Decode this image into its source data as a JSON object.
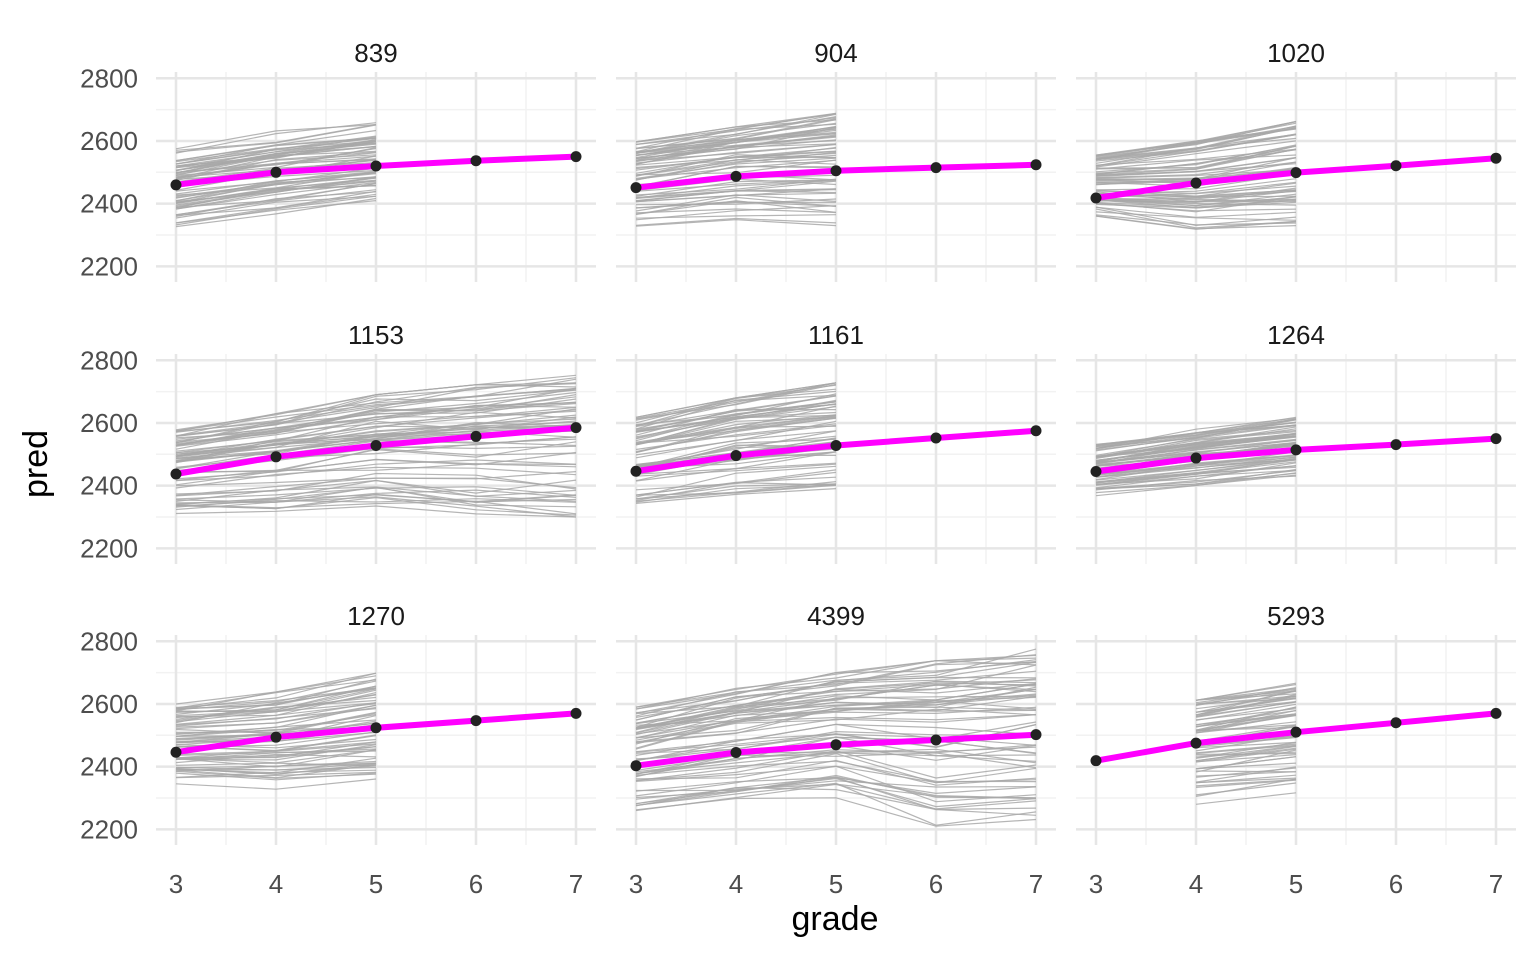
{
  "chart_data": {
    "type": "line",
    "facet_layout": "3 x 3 grid, shared axes",
    "xlabel": "grade",
    "ylabel": "pred",
    "xlim": [
      3,
      7
    ],
    "ylim": [
      2150,
      2820
    ],
    "x_ticks": [
      3,
      4,
      5,
      6,
      7
    ],
    "y_ticks": [
      2200,
      2400,
      2600,
      2800
    ],
    "grid": true,
    "legend": "none",
    "background_lines": "many thin gray lines per panel, one per individual (approximate spread described by upper/lower envelopes)",
    "colors": {
      "mean_line": "#ff00ff",
      "mean_point": "#222222",
      "individual_lines": "#a8a8a8",
      "grid_major": "#e6e6e6",
      "grid_minor": "#f2f2f2"
    },
    "panels": [
      {
        "title": "839",
        "grades": [
          3,
          4,
          5,
          6,
          7
        ],
        "mean": [
          2460,
          2500,
          2520,
          2537,
          2550
        ],
        "spread_grades": [
          3,
          4,
          5
        ],
        "spread_upper": [
          2582,
          2632,
          2668
        ],
        "spread_lower": [
          2308,
          2348,
          2378
        ]
      },
      {
        "title": "904",
        "grades": [
          3,
          4,
          5,
          6,
          7
        ],
        "mean": [
          2451,
          2487,
          2505,
          2515,
          2524
        ],
        "spread_grades": [
          3,
          4,
          5
        ],
        "spread_upper": [
          2597,
          2645,
          2688
        ],
        "spread_lower": [
          2328,
          2348,
          2330
        ]
      },
      {
        "title": "1020",
        "grades": [
          3,
          4,
          5,
          6,
          7
        ],
        "mean": [
          2418,
          2466,
          2499,
          2521,
          2545
        ],
        "spread_grades": [
          3,
          4,
          5
        ],
        "spread_upper": [
          2555,
          2600,
          2662
        ],
        "spread_lower": [
          2360,
          2318,
          2330
        ]
      },
      {
        "title": "1153",
        "grades": [
          3,
          4,
          5,
          6,
          7
        ],
        "mean": [
          2437,
          2492,
          2528,
          2557,
          2585
        ],
        "spread_grades": [
          3,
          4,
          5,
          6,
          7
        ],
        "spread_upper": [
          2578,
          2630,
          2690,
          2722,
          2752
        ],
        "spread_lower": [
          2308,
          2318,
          2335,
          2310,
          2300
        ]
      },
      {
        "title": "1161",
        "grades": [
          3,
          4,
          5,
          6,
          7
        ],
        "mean": [
          2446,
          2496,
          2528,
          2552,
          2575
        ],
        "spread_grades": [
          3,
          4,
          5
        ],
        "spread_upper": [
          2618,
          2680,
          2728
        ],
        "spread_lower": [
          2298,
          2330,
          2345
        ]
      },
      {
        "title": "1264",
        "grades": [
          3,
          4,
          5,
          6,
          7
        ],
        "mean": [
          2445,
          2488,
          2514,
          2531,
          2550
        ],
        "spread_grades": [
          3,
          4,
          5
        ],
        "spread_upper": [
          2532,
          2580,
          2618
        ],
        "spread_lower": [
          2368,
          2392,
          2425
        ]
      },
      {
        "title": "1270",
        "grades": [
          3,
          4,
          5,
          6,
          7
        ],
        "mean": [
          2446,
          2494,
          2524,
          2547,
          2570
        ],
        "spread_grades": [
          3,
          4,
          5
        ],
        "spread_upper": [
          2600,
          2638,
          2698
        ],
        "spread_lower": [
          2335,
          2322,
          2330
        ]
      },
      {
        "title": "4399",
        "grades": [
          3,
          4,
          5,
          6,
          7
        ],
        "mean": [
          2403,
          2445,
          2470,
          2485,
          2502
        ],
        "spread_grades": [
          3,
          4,
          5,
          6,
          7
        ],
        "spread_upper": [
          2590,
          2650,
          2700,
          2738,
          2775
        ],
        "spread_lower": [
          2245,
          2275,
          2300,
          2210,
          2198
        ]
      },
      {
        "title": "5293",
        "grades": [
          3,
          4,
          5,
          6,
          7
        ],
        "mean": [
          2419,
          2475,
          2510,
          2540,
          2570
        ],
        "spread_grades": [
          4,
          5
        ],
        "spread_upper": [
          2612,
          2668
        ],
        "spread_lower": [
          2280,
          2305
        ]
      }
    ]
  }
}
